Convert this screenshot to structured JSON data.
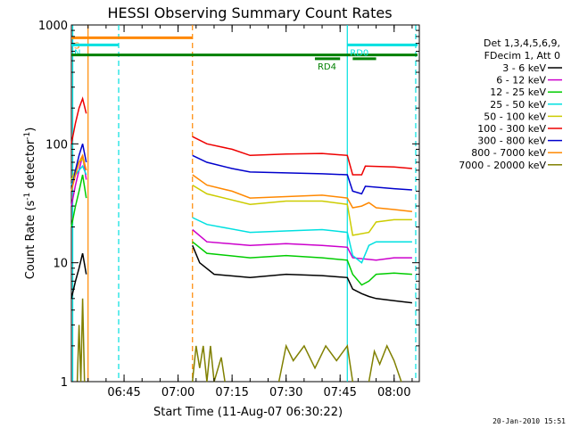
{
  "chart_data": {
    "type": "line",
    "title": "HESSI Observing Summary Count Rates",
    "xlabel": "Start Time (11-Aug-07 06:30:22)",
    "ylabel_main": "Count Rate (s",
    "ylabel_sup1": "-1",
    "ylabel_mid": " detector",
    "ylabel_sup2": "-1",
    "ylabel_end": ")",
    "footer": "20-Jan-2010 15:51",
    "y_scale": "log",
    "ylim": [
      1,
      1000
    ],
    "xlim": [
      "06:30:22",
      "08:07:00"
    ],
    "x_ticks": [
      "06:45",
      "07:00",
      "07:15",
      "07:30",
      "07:45",
      "08:00"
    ],
    "y_ticks": [
      "1",
      "10",
      "100",
      "1000"
    ],
    "legend_header": [
      "Det 1,3,4,5,6,9,",
      "FDecim 1, Att 0"
    ],
    "legend_position": "right",
    "series": [
      {
        "name": "3 - 6 keV",
        "color": "#000000",
        "segments": [
          [
            [
              "06:30:22",
              5
            ],
            [
              "06:31:30",
              7
            ],
            [
              "06:32:30",
              9
            ],
            [
              "06:33:30",
              12
            ],
            [
              "06:34:30",
              8
            ]
          ],
          [
            [
              "07:04:00",
              14
            ],
            [
              "07:06:00",
              10
            ],
            [
              "07:10:00",
              8
            ],
            [
              "07:20:00",
              7.5
            ],
            [
              "07:30:00",
              8
            ],
            [
              "07:40:00",
              7.8
            ],
            [
              "07:47:00",
              7.5
            ],
            [
              "07:48:30",
              6
            ],
            [
              "07:51:00",
              5.5
            ],
            [
              "07:53:00",
              5.2
            ],
            [
              "07:55:00",
              5
            ],
            [
              "08:00:00",
              4.8
            ],
            [
              "08:05:00",
              4.6
            ]
          ]
        ]
      },
      {
        "name": "6 - 12 keV",
        "color": "#cc00cc",
        "segments": [
          [
            [
              "06:30:22",
              30
            ],
            [
              "06:31:30",
              45
            ],
            [
              "06:32:30",
              60
            ],
            [
              "06:33:30",
              80
            ],
            [
              "06:34:30",
              50
            ]
          ],
          [
            [
              "07:04:00",
              19
            ],
            [
              "07:08:00",
              15
            ],
            [
              "07:20:00",
              14
            ],
            [
              "07:30:00",
              14.5
            ],
            [
              "07:40:00",
              14
            ],
            [
              "07:47:00",
              13.5
            ],
            [
              "07:48:30",
              11
            ],
            [
              "07:55:00",
              10.5
            ],
            [
              "08:00:00",
              11
            ],
            [
              "08:05:00",
              11
            ]
          ]
        ]
      },
      {
        "name": "12 - 25 keV",
        "color": "#00cc00",
        "segments": [
          [
            [
              "06:30:22",
              20
            ],
            [
              "06:31:30",
              30
            ],
            [
              "06:32:30",
              40
            ],
            [
              "06:33:30",
              55
            ],
            [
              "06:34:30",
              35
            ]
          ],
          [
            [
              "07:04:00",
              15
            ],
            [
              "07:08:00",
              12
            ],
            [
              "07:20:00",
              11
            ],
            [
              "07:30:00",
              11.5
            ],
            [
              "07:40:00",
              11
            ],
            [
              "07:47:00",
              10.5
            ],
            [
              "07:48:30",
              8
            ],
            [
              "07:51:00",
              6.5
            ],
            [
              "07:53:00",
              7
            ],
            [
              "07:55:00",
              8
            ],
            [
              "08:00:00",
              8.2
            ],
            [
              "08:05:00",
              8
            ]
          ]
        ]
      },
      {
        "name": "25 - 50 keV",
        "color": "#00e0e0",
        "segments": [
          [
            [
              "06:30:22",
              45
            ],
            [
              "06:31:30",
              55
            ],
            [
              "06:32:30",
              60
            ],
            [
              "06:33:30",
              65
            ],
            [
              "06:34:30",
              55
            ]
          ],
          [
            [
              "07:04:00",
              24
            ],
            [
              "07:08:00",
              21
            ],
            [
              "07:20:00",
              18
            ],
            [
              "07:30:00",
              18.5
            ],
            [
              "07:40:00",
              19
            ],
            [
              "07:47:00",
              18
            ],
            [
              "07:48:30",
              11.5
            ],
            [
              "07:51:00",
              10
            ],
            [
              "07:53:00",
              14
            ],
            [
              "07:55:00",
              15
            ],
            [
              "08:00:00",
              15
            ],
            [
              "08:05:00",
              15
            ]
          ]
        ]
      },
      {
        "name": "50 - 100 keV",
        "color": "#cccc00",
        "segments": [
          [
            [
              "06:30:22",
              50
            ],
            [
              "06:31:30",
              60
            ],
            [
              "06:32:30",
              70
            ],
            [
              "06:33:30",
              75
            ],
            [
              "06:34:30",
              60
            ]
          ],
          [
            [
              "07:04:00",
              45
            ],
            [
              "07:08:00",
              38
            ],
            [
              "07:20:00",
              31
            ],
            [
              "07:30:00",
              33
            ],
            [
              "07:40:00",
              33
            ],
            [
              "07:47:00",
              31
            ],
            [
              "07:48:30",
              17
            ],
            [
              "07:53:00",
              18
            ],
            [
              "07:55:00",
              22
            ],
            [
              "08:00:00",
              23
            ],
            [
              "08:05:00",
              23
            ]
          ]
        ]
      },
      {
        "name": "100 - 300 keV",
        "color": "#ee0000",
        "segments": [
          [
            [
              "06:30:22",
              100
            ],
            [
              "06:31:30",
              150
            ],
            [
              "06:32:30",
              200
            ],
            [
              "06:33:30",
              240
            ],
            [
              "06:34:30",
              180
            ]
          ],
          [
            [
              "07:04:00",
              115
            ],
            [
              "07:08:00",
              100
            ],
            [
              "07:15:00",
              90
            ],
            [
              "07:20:00",
              80
            ],
            [
              "07:30:00",
              82
            ],
            [
              "07:40:00",
              83
            ],
            [
              "07:47:00",
              80
            ],
            [
              "07:48:30",
              55
            ],
            [
              "07:51:00",
              55
            ],
            [
              "07:52:00",
              65
            ],
            [
              "08:00:00",
              64
            ],
            [
              "08:05:00",
              62
            ]
          ]
        ]
      },
      {
        "name": "300 - 800 keV",
        "color": "#0000cc",
        "segments": [
          [
            [
              "06:30:22",
              40
            ],
            [
              "06:31:30",
              60
            ],
            [
              "06:32:30",
              80
            ],
            [
              "06:33:30",
              100
            ],
            [
              "06:34:30",
              70
            ]
          ],
          [
            [
              "07:04:00",
              80
            ],
            [
              "07:08:00",
              70
            ],
            [
              "07:15:00",
              62
            ],
            [
              "07:20:00",
              58
            ],
            [
              "07:30:00",
              57
            ],
            [
              "07:40:00",
              56
            ],
            [
              "07:47:00",
              55
            ],
            [
              "07:48:30",
              40
            ],
            [
              "07:51:00",
              38
            ],
            [
              "07:52:00",
              44
            ],
            [
              "08:00:00",
              42
            ],
            [
              "08:05:00",
              41
            ]
          ]
        ]
      },
      {
        "name": "800 - 7000 keV",
        "color": "#ff8800",
        "segments": [
          [
            [
              "06:30:22",
              40
            ],
            [
              "06:31:30",
              55
            ],
            [
              "06:32:30",
              70
            ],
            [
              "06:33:30",
              80
            ],
            [
              "06:34:30",
              60
            ]
          ],
          [
            [
              "07:04:00",
              55
            ],
            [
              "07:08:00",
              45
            ],
            [
              "07:15:00",
              40
            ],
            [
              "07:20:00",
              35
            ],
            [
              "07:30:00",
              36
            ],
            [
              "07:40:00",
              37
            ],
            [
              "07:47:00",
              35
            ],
            [
              "07:48:30",
              29
            ],
            [
              "07:51:00",
              30
            ],
            [
              "07:53:00",
              32
            ],
            [
              "07:55:00",
              29
            ],
            [
              "08:00:00",
              28
            ],
            [
              "08:05:00",
              27
            ]
          ]
        ]
      },
      {
        "name": "7000 - 20000 keV",
        "color": "#808000",
        "segments": [
          [
            [
              "06:32:00",
              1
            ],
            [
              "06:32:30",
              3
            ],
            [
              "06:33:00",
              1
            ],
            [
              "06:33:30",
              5
            ],
            [
              "06:34:00",
              1
            ]
          ],
          [
            [
              "07:04:00",
              1
            ],
            [
              "07:05:00",
              2
            ],
            [
              "07:06:00",
              1.3
            ],
            [
              "07:07:00",
              2
            ],
            [
              "07:08:00",
              1
            ],
            [
              "07:09:00",
              2
            ],
            [
              "07:10:00",
              1
            ],
            [
              "07:12:00",
              1.6
            ],
            [
              "07:13:00",
              1
            ]
          ],
          [
            [
              "07:28:00",
              1
            ],
            [
              "07:30:00",
              2
            ],
            [
              "07:32:00",
              1.5
            ],
            [
              "07:35:00",
              2
            ],
            [
              "07:38:00",
              1.3
            ],
            [
              "07:41:00",
              2
            ],
            [
              "07:44:00",
              1.5
            ],
            [
              "07:47:00",
              2
            ],
            [
              "07:48:30",
              1
            ]
          ],
          [
            [
              "07:53:00",
              1
            ],
            [
              "07:54:30",
              1.8
            ],
            [
              "07:56:00",
              1.4
            ],
            [
              "07:58:00",
              2
            ],
            [
              "08:00:00",
              1.5
            ],
            [
              "08:02:00",
              1
            ]
          ]
        ]
      }
    ],
    "time_markers": [
      {
        "time": "06:30:45",
        "color": "#00e0e0",
        "style": "solid"
      },
      {
        "time": "06:35:00",
        "color": "#ff8800",
        "style": "solid"
      },
      {
        "time": "06:43:30",
        "color": "#00e0e0",
        "style": "dashed"
      },
      {
        "time": "07:04:00",
        "color": "#ff8800",
        "style": "dashed"
      },
      {
        "time": "07:47:00",
        "color": "#00e0e0",
        "style": "solid"
      },
      {
        "time": "08:06:00",
        "color": "#00e0e0",
        "style": "dashed"
      }
    ],
    "flags": [
      {
        "label": "S",
        "color": "#ff8800",
        "start": "06:30:22",
        "end": "07:04:00",
        "level": 780
      },
      {
        "label": "N",
        "color": "#00e0e0",
        "start": "06:30:22",
        "end": "06:43:30",
        "level": 680
      },
      {
        "label": "",
        "color": "#008000",
        "start": "06:30:22",
        "end": "08:06:30",
        "level": 560
      },
      {
        "label": "RD4",
        "color": "#008000",
        "start": "07:38:00",
        "end": "07:45:00",
        "level": 520
      },
      {
        "label": "RD0",
        "color": "#00e0e0",
        "start": "07:47:00",
        "end": "08:06:30",
        "level": 680
      },
      {
        "label": "",
        "color": "#008000",
        "start": "07:48:30",
        "end": "07:55:00",
        "level": 520
      }
    ]
  }
}
